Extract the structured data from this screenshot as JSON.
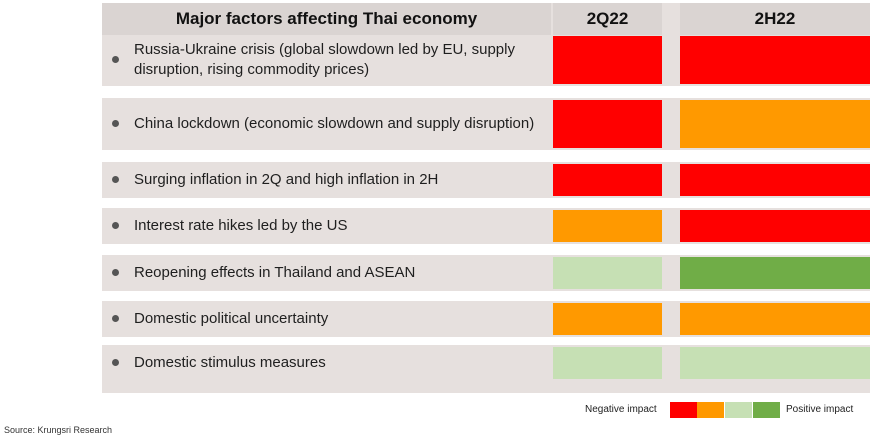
{
  "header": {
    "factor_title": "Major factors affecting Thai economy",
    "col1": "2Q22",
    "col2": "2H22"
  },
  "colors": {
    "strong_negative": "#ff0000",
    "negative": "#ff9900",
    "positive": "#c6e0b4",
    "strong_positive": "#70ad47"
  },
  "rows": [
    {
      "label": "Russia-Ukraine crisis (global slowdown led by EU, supply disruption, rising commodity prices)",
      "q2": "strong_negative",
      "h2": "strong_negative"
    },
    {
      "label": "China lockdown (economic slowdown and supply disruption)",
      "q2": "strong_negative",
      "h2": "negative"
    },
    {
      "label": "Surging inflation in 2Q and high inflation in 2H",
      "q2": "strong_negative",
      "h2": "strong_negative"
    },
    {
      "label": "Interest rate hikes led by the US",
      "q2": "negative",
      "h2": "strong_negative"
    },
    {
      "label": "Reopening effects in Thailand and ASEAN",
      "q2": "positive",
      "h2": "strong_positive"
    },
    {
      "label": "Domestic political uncertainty",
      "q2": "negative",
      "h2": "negative"
    },
    {
      "label": "Domestic stimulus measures",
      "q2": "positive",
      "h2": "positive"
    }
  ],
  "legend": {
    "negative_label": "Negative impact",
    "positive_label": "Positive impact",
    "scale": [
      "strong_negative",
      "negative",
      "positive",
      "strong_positive"
    ]
  },
  "source": "Source: Krungsri Research"
}
